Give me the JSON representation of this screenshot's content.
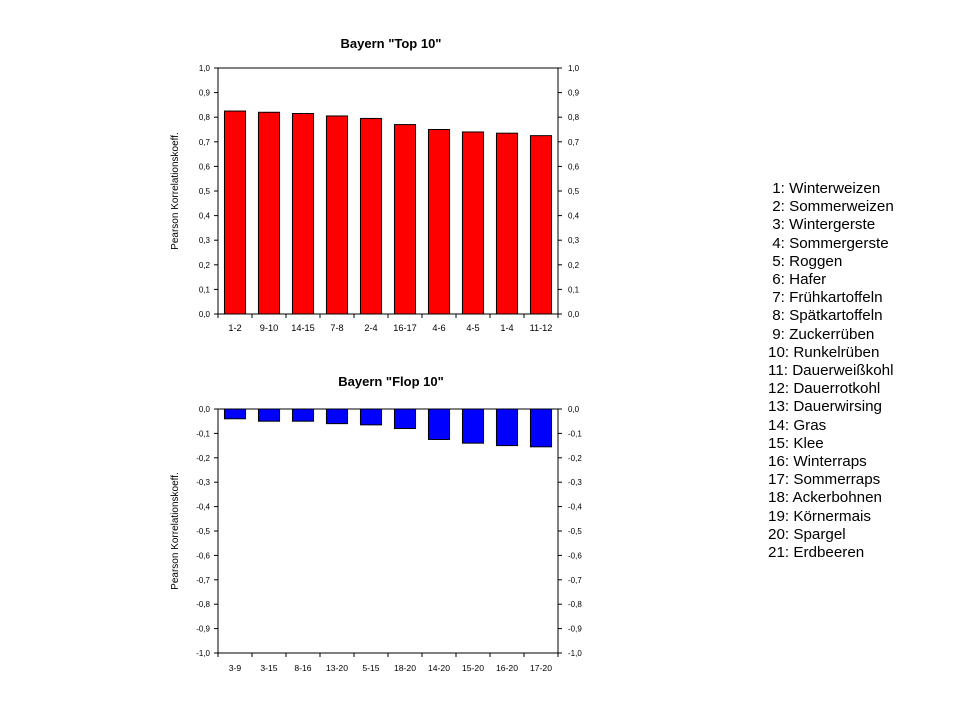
{
  "chart_data": [
    {
      "type": "bar",
      "title": "Bayern \"Top 10\"",
      "ylabel": "Pearson Korrelationskoeff.",
      "xlabel": "",
      "categories": [
        "1-2",
        "9-10",
        "14-15",
        "7-8",
        "2-4",
        "16-17",
        "4-6",
        "4-5",
        "1-4",
        "11-12"
      ],
      "values": [
        0.825,
        0.82,
        0.815,
        0.805,
        0.795,
        0.77,
        0.75,
        0.74,
        0.735,
        0.725
      ],
      "ylim": [
        0,
        1.0
      ],
      "yticks": [
        "0,0",
        "0,1",
        "0,2",
        "0,3",
        "0,4",
        "0,5",
        "0,6",
        "0,7",
        "0,8",
        "0,9",
        "1,0"
      ],
      "bar_color": "#ff0000",
      "grid": false,
      "right_axis": true
    },
    {
      "type": "bar",
      "title": "Bayern \"Flop 10\"",
      "ylabel": "Pearson Korrelationskoeff.",
      "xlabel": "",
      "categories": [
        "3-9",
        "3-15",
        "8-16",
        "13-20",
        "5-15",
        "18-20",
        "14-20",
        "15-20",
        "16-20",
        "17-20"
      ],
      "values": [
        -0.04,
        -0.05,
        -0.05,
        -0.06,
        -0.065,
        -0.08,
        -0.125,
        -0.14,
        -0.15,
        -0.155
      ],
      "ylim": [
        -1.0,
        0
      ],
      "yticks": [
        "0,0",
        "-0,1",
        "-0,2",
        "-0,3",
        "-0,4",
        "-0,5",
        "-0,6",
        "-0,7",
        "-0,8",
        "-0,9",
        "-1,0"
      ],
      "bar_color": "#0000ff",
      "grid": false,
      "right_axis": true
    }
  ],
  "legend": [
    " 1: Winterweizen",
    " 2: Sommerweizen",
    " 3: Wintergerste",
    " 4: Sommergerste",
    " 5: Roggen",
    " 6: Hafer",
    " 7: Frühkartoffeln",
    " 8: Spätkartoffeln",
    " 9: Zuckerrüben",
    "10: Runkelrüben",
    "11: Dauerweißkohl",
    "12: Dauerrotkohl",
    "13: Dauerwirsing",
    "14: Gras",
    "15: Klee",
    "16: Winterraps",
    "17: Sommerraps",
    "18: Ackerbohnen",
    "19: Körnermais",
    "20: Spargel",
    "21: Erdbeeren"
  ]
}
